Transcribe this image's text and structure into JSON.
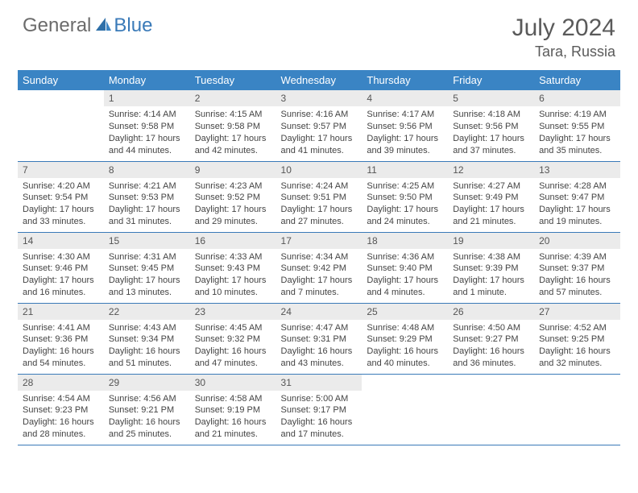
{
  "brand": {
    "part1": "General",
    "part2": "Blue"
  },
  "title": {
    "month_year": "July 2024",
    "location": "Tara, Russia"
  },
  "colors": {
    "header_bg": "#3a84c4",
    "header_fg": "#ffffff",
    "daynum_bg": "#ebebeb",
    "border": "#3a7ab8",
    "logo_gray": "#6b6b6b",
    "logo_blue": "#3a7ab8"
  },
  "weekdays": [
    "Sunday",
    "Monday",
    "Tuesday",
    "Wednesday",
    "Thursday",
    "Friday",
    "Saturday"
  ],
  "weeks": [
    [
      null,
      {
        "n": "1",
        "sunrise": "Sunrise: 4:14 AM",
        "sunset": "Sunset: 9:58 PM",
        "daylight1": "Daylight: 17 hours",
        "daylight2": "and 44 minutes."
      },
      {
        "n": "2",
        "sunrise": "Sunrise: 4:15 AM",
        "sunset": "Sunset: 9:58 PM",
        "daylight1": "Daylight: 17 hours",
        "daylight2": "and 42 minutes."
      },
      {
        "n": "3",
        "sunrise": "Sunrise: 4:16 AM",
        "sunset": "Sunset: 9:57 PM",
        "daylight1": "Daylight: 17 hours",
        "daylight2": "and 41 minutes."
      },
      {
        "n": "4",
        "sunrise": "Sunrise: 4:17 AM",
        "sunset": "Sunset: 9:56 PM",
        "daylight1": "Daylight: 17 hours",
        "daylight2": "and 39 minutes."
      },
      {
        "n": "5",
        "sunrise": "Sunrise: 4:18 AM",
        "sunset": "Sunset: 9:56 PM",
        "daylight1": "Daylight: 17 hours",
        "daylight2": "and 37 minutes."
      },
      {
        "n": "6",
        "sunrise": "Sunrise: 4:19 AM",
        "sunset": "Sunset: 9:55 PM",
        "daylight1": "Daylight: 17 hours",
        "daylight2": "and 35 minutes."
      }
    ],
    [
      {
        "n": "7",
        "sunrise": "Sunrise: 4:20 AM",
        "sunset": "Sunset: 9:54 PM",
        "daylight1": "Daylight: 17 hours",
        "daylight2": "and 33 minutes."
      },
      {
        "n": "8",
        "sunrise": "Sunrise: 4:21 AM",
        "sunset": "Sunset: 9:53 PM",
        "daylight1": "Daylight: 17 hours",
        "daylight2": "and 31 minutes."
      },
      {
        "n": "9",
        "sunrise": "Sunrise: 4:23 AM",
        "sunset": "Sunset: 9:52 PM",
        "daylight1": "Daylight: 17 hours",
        "daylight2": "and 29 minutes."
      },
      {
        "n": "10",
        "sunrise": "Sunrise: 4:24 AM",
        "sunset": "Sunset: 9:51 PM",
        "daylight1": "Daylight: 17 hours",
        "daylight2": "and 27 minutes."
      },
      {
        "n": "11",
        "sunrise": "Sunrise: 4:25 AM",
        "sunset": "Sunset: 9:50 PM",
        "daylight1": "Daylight: 17 hours",
        "daylight2": "and 24 minutes."
      },
      {
        "n": "12",
        "sunrise": "Sunrise: 4:27 AM",
        "sunset": "Sunset: 9:49 PM",
        "daylight1": "Daylight: 17 hours",
        "daylight2": "and 21 minutes."
      },
      {
        "n": "13",
        "sunrise": "Sunrise: 4:28 AM",
        "sunset": "Sunset: 9:47 PM",
        "daylight1": "Daylight: 17 hours",
        "daylight2": "and 19 minutes."
      }
    ],
    [
      {
        "n": "14",
        "sunrise": "Sunrise: 4:30 AM",
        "sunset": "Sunset: 9:46 PM",
        "daylight1": "Daylight: 17 hours",
        "daylight2": "and 16 minutes."
      },
      {
        "n": "15",
        "sunrise": "Sunrise: 4:31 AM",
        "sunset": "Sunset: 9:45 PM",
        "daylight1": "Daylight: 17 hours",
        "daylight2": "and 13 minutes."
      },
      {
        "n": "16",
        "sunrise": "Sunrise: 4:33 AM",
        "sunset": "Sunset: 9:43 PM",
        "daylight1": "Daylight: 17 hours",
        "daylight2": "and 10 minutes."
      },
      {
        "n": "17",
        "sunrise": "Sunrise: 4:34 AM",
        "sunset": "Sunset: 9:42 PM",
        "daylight1": "Daylight: 17 hours",
        "daylight2": "and 7 minutes."
      },
      {
        "n": "18",
        "sunrise": "Sunrise: 4:36 AM",
        "sunset": "Sunset: 9:40 PM",
        "daylight1": "Daylight: 17 hours",
        "daylight2": "and 4 minutes."
      },
      {
        "n": "19",
        "sunrise": "Sunrise: 4:38 AM",
        "sunset": "Sunset: 9:39 PM",
        "daylight1": "Daylight: 17 hours",
        "daylight2": "and 1 minute."
      },
      {
        "n": "20",
        "sunrise": "Sunrise: 4:39 AM",
        "sunset": "Sunset: 9:37 PM",
        "daylight1": "Daylight: 16 hours",
        "daylight2": "and 57 minutes."
      }
    ],
    [
      {
        "n": "21",
        "sunrise": "Sunrise: 4:41 AM",
        "sunset": "Sunset: 9:36 PM",
        "daylight1": "Daylight: 16 hours",
        "daylight2": "and 54 minutes."
      },
      {
        "n": "22",
        "sunrise": "Sunrise: 4:43 AM",
        "sunset": "Sunset: 9:34 PM",
        "daylight1": "Daylight: 16 hours",
        "daylight2": "and 51 minutes."
      },
      {
        "n": "23",
        "sunrise": "Sunrise: 4:45 AM",
        "sunset": "Sunset: 9:32 PM",
        "daylight1": "Daylight: 16 hours",
        "daylight2": "and 47 minutes."
      },
      {
        "n": "24",
        "sunrise": "Sunrise: 4:47 AM",
        "sunset": "Sunset: 9:31 PM",
        "daylight1": "Daylight: 16 hours",
        "daylight2": "and 43 minutes."
      },
      {
        "n": "25",
        "sunrise": "Sunrise: 4:48 AM",
        "sunset": "Sunset: 9:29 PM",
        "daylight1": "Daylight: 16 hours",
        "daylight2": "and 40 minutes."
      },
      {
        "n": "26",
        "sunrise": "Sunrise: 4:50 AM",
        "sunset": "Sunset: 9:27 PM",
        "daylight1": "Daylight: 16 hours",
        "daylight2": "and 36 minutes."
      },
      {
        "n": "27",
        "sunrise": "Sunrise: 4:52 AM",
        "sunset": "Sunset: 9:25 PM",
        "daylight1": "Daylight: 16 hours",
        "daylight2": "and 32 minutes."
      }
    ],
    [
      {
        "n": "28",
        "sunrise": "Sunrise: 4:54 AM",
        "sunset": "Sunset: 9:23 PM",
        "daylight1": "Daylight: 16 hours",
        "daylight2": "and 28 minutes."
      },
      {
        "n": "29",
        "sunrise": "Sunrise: 4:56 AM",
        "sunset": "Sunset: 9:21 PM",
        "daylight1": "Daylight: 16 hours",
        "daylight2": "and 25 minutes."
      },
      {
        "n": "30",
        "sunrise": "Sunrise: 4:58 AM",
        "sunset": "Sunset: 9:19 PM",
        "daylight1": "Daylight: 16 hours",
        "daylight2": "and 21 minutes."
      },
      {
        "n": "31",
        "sunrise": "Sunrise: 5:00 AM",
        "sunset": "Sunset: 9:17 PM",
        "daylight1": "Daylight: 16 hours",
        "daylight2": "and 17 minutes."
      },
      null,
      null,
      null
    ]
  ]
}
